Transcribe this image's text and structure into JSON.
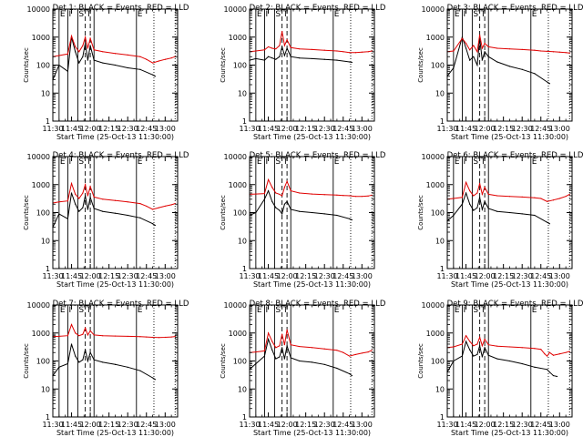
{
  "chart_data": {
    "type": "line",
    "xlabel": "Start Time (25-Oct-13 11:30:00)",
    "ylabel": "Counts/sec",
    "x_ticks": [
      "11:30",
      "11:45",
      "12:00",
      "12:15",
      "12:30",
      "12:45",
      "13:00"
    ],
    "x_tick_minutes": [
      0,
      15,
      30,
      45,
      60,
      75,
      90
    ],
    "xlim_minutes": [
      0,
      100
    ],
    "ylim": [
      1,
      10000
    ],
    "yscale": "log",
    "y_ticks": [
      "1",
      "10",
      "100",
      "1000",
      "10000"
    ],
    "y_tick_values": [
      1,
      10,
      100,
      1000,
      10000
    ],
    "series_colors": {
      "events": "#000000",
      "lld": "#e00000"
    },
    "interval_markers": [
      {
        "label": "E",
        "minutes": 5,
        "style": "solid"
      },
      {
        "label": "I",
        "minutes": 12,
        "style": "solid"
      },
      {
        "label": "S",
        "minutes": 20,
        "style": "solid"
      },
      {
        "label": "T",
        "minutes": 26,
        "style": "dashed"
      },
      {
        "label": "",
        "minutes": 30,
        "style": "dashed"
      },
      {
        "label": "",
        "minutes": 33,
        "style": "solid"
      },
      {
        "label": "E",
        "minutes": 67,
        "style": "solid"
      },
      {
        "label": "",
        "minutes": 81,
        "style": "dotted"
      },
      {
        "label": "",
        "minutes": 98,
        "style": "dotted"
      }
    ],
    "panels": [
      {
        "title": "Det 1: BLACK = Events, RED = LLD",
        "series": [
          {
            "name": "Events",
            "x": [
              0,
              5,
              12,
              15,
              18,
              21,
              24,
              26,
              28,
              30,
              33,
              40,
              50,
              60,
              70,
              80,
              82
            ],
            "y": [
              30,
              100,
              60,
              1000,
              300,
              120,
              200,
              600,
              150,
              500,
              150,
              120,
              100,
              80,
              70,
              45,
              40
            ]
          },
          {
            "name": "LLD",
            "x": [
              0,
              5,
              12,
              15,
              18,
              21,
              24,
              26,
              28,
              30,
              33,
              40,
              50,
              60,
              70,
              75,
              80,
              85,
              90,
              95,
              98
            ],
            "y": [
              200,
              220,
              250,
              1100,
              450,
              300,
              500,
              1000,
              400,
              900,
              350,
              300,
              260,
              230,
              200,
              160,
              120,
              140,
              160,
              180,
              200
            ]
          }
        ]
      },
      {
        "title": "Det 2: BLACK = Events, RED = LLD",
        "series": [
          {
            "name": "Events",
            "x": [
              0,
              5,
              12,
              15,
              18,
              21,
              24,
              26,
              28,
              30,
              33,
              40,
              50,
              60,
              70,
              80,
              82
            ],
            "y": [
              150,
              170,
              150,
              200,
              180,
              160,
              200,
              450,
              220,
              400,
              200,
              180,
              170,
              160,
              150,
              130,
              125
            ]
          },
          {
            "name": "LLD",
            "x": [
              0,
              5,
              12,
              15,
              18,
              21,
              24,
              26,
              28,
              30,
              33,
              40,
              50,
              60,
              70,
              75,
              80,
              85,
              90,
              95,
              98
            ],
            "y": [
              300,
              320,
              350,
              450,
              400,
              380,
              500,
              1600,
              500,
              800,
              420,
              380,
              360,
              340,
              320,
              300,
              280,
              280,
              290,
              300,
              320
            ]
          }
        ]
      },
      {
        "title": "Det 3: BLACK = Events, RED = LLD",
        "series": [
          {
            "name": "Events",
            "x": [
              0,
              5,
              12,
              15,
              18,
              21,
              24,
              26,
              28,
              30,
              33,
              40,
              50,
              60,
              70,
              80,
              82
            ],
            "y": [
              40,
              80,
              1000,
              400,
              150,
              200,
              100,
              900,
              150,
              300,
              200,
              130,
              90,
              70,
              50,
              25,
              22
            ]
          },
          {
            "name": "LLD",
            "x": [
              0,
              5,
              12,
              15,
              18,
              21,
              24,
              26,
              28,
              30,
              33,
              40,
              50,
              60,
              70,
              75,
              80,
              85,
              90,
              95,
              98
            ],
            "y": [
              300,
              320,
              900,
              600,
              350,
              500,
              300,
              1200,
              400,
              600,
              450,
              400,
              380,
              360,
              340,
              320,
              310,
              300,
              290,
              280,
              270
            ]
          }
        ]
      },
      {
        "title": "Det 4: BLACK = Events, RED = LLD",
        "series": [
          {
            "name": "Events",
            "x": [
              0,
              5,
              12,
              15,
              18,
              21,
              24,
              26,
              28,
              30,
              33,
              40,
              50,
              60,
              70,
              80,
              82
            ],
            "y": [
              30,
              90,
              60,
              500,
              200,
              110,
              150,
              400,
              130,
              350,
              140,
              110,
              95,
              80,
              65,
              40,
              35
            ]
          },
          {
            "name": "LLD",
            "x": [
              0,
              5,
              12,
              15,
              18,
              21,
              24,
              26,
              28,
              30,
              33,
              40,
              50,
              60,
              70,
              75,
              80,
              85,
              90,
              95,
              98
            ],
            "y": [
              220,
              240,
              260,
              1100,
              450,
              320,
              500,
              1000,
              400,
              850,
              360,
              300,
              270,
              240,
              210,
              170,
              130,
              150,
              170,
              190,
              210
            ]
          }
        ]
      },
      {
        "title": "Det 5: BLACK = Events, RED = LLD",
        "series": [
          {
            "name": "Events",
            "x": [
              0,
              5,
              12,
              15,
              18,
              21,
              24,
              26,
              28,
              30,
              33,
              40,
              50,
              60,
              70,
              80,
              82
            ],
            "y": [
              80,
              100,
              300,
              600,
              250,
              150,
              120,
              90,
              200,
              250,
              130,
              110,
              100,
              90,
              80,
              60,
              55
            ]
          },
          {
            "name": "LLD",
            "x": [
              0,
              5,
              12,
              15,
              18,
              21,
              24,
              26,
              28,
              30,
              33,
              40,
              50,
              60,
              70,
              75,
              80,
              85,
              90,
              95,
              98
            ],
            "y": [
              450,
              460,
              480,
              1500,
              800,
              500,
              450,
              400,
              800,
              1300,
              600,
              500,
              460,
              440,
              420,
              410,
              400,
              380,
              380,
              390,
              420
            ]
          }
        ]
      },
      {
        "title": "Det 6: BLACK = Events, RED = LLD",
        "series": [
          {
            "name": "Events",
            "x": [
              0,
              5,
              12,
              15,
              18,
              21,
              24,
              26,
              28,
              30,
              33,
              40,
              50,
              60,
              70,
              80,
              82
            ],
            "y": [
              50,
              80,
              200,
              500,
              200,
              120,
              150,
              350,
              130,
              250,
              140,
              110,
              100,
              90,
              80,
              45,
              40
            ]
          },
          {
            "name": "LLD",
            "x": [
              0,
              5,
              12,
              15,
              18,
              21,
              24,
              26,
              28,
              30,
              33,
              40,
              50,
              60,
              70,
              75,
              80,
              85,
              90,
              95,
              98
            ],
            "y": [
              300,
              320,
              350,
              1200,
              600,
              400,
              500,
              1100,
              450,
              800,
              450,
              400,
              380,
              360,
              340,
              320,
              250,
              280,
              320,
              380,
              450
            ]
          }
        ]
      },
      {
        "title": "Det 7: BLACK = Events, RED = LLD",
        "series": [
          {
            "name": "Events",
            "x": [
              0,
              5,
              12,
              15,
              18,
              21,
              24,
              26,
              28,
              30,
              33,
              40,
              50,
              60,
              70,
              80,
              82
            ],
            "y": [
              30,
              60,
              80,
              400,
              150,
              90,
              110,
              250,
              100,
              200,
              110,
              90,
              75,
              60,
              45,
              25,
              22
            ]
          },
          {
            "name": "LLD",
            "x": [
              0,
              5,
              12,
              15,
              18,
              21,
              24,
              26,
              28,
              30,
              33,
              40,
              50,
              60,
              70,
              75,
              80,
              85,
              90,
              95,
              98
            ],
            "y": [
              750,
              760,
              800,
              2000,
              1000,
              800,
              900,
              1500,
              850,
              1200,
              850,
              800,
              780,
              760,
              740,
              720,
              700,
              690,
              700,
              720,
              750
            ]
          }
        ]
      },
      {
        "title": "Det 8: BLACK = Events, RED = LLD",
        "series": [
          {
            "name": "Events",
            "x": [
              0,
              5,
              12,
              15,
              18,
              21,
              24,
              26,
              28,
              30,
              33,
              40,
              50,
              60,
              70,
              80,
              82
            ],
            "y": [
              50,
              80,
              150,
              600,
              250,
              120,
              140,
              300,
              120,
              350,
              130,
              100,
              90,
              75,
              55,
              35,
              30
            ]
          },
          {
            "name": "LLD",
            "x": [
              0,
              5,
              12,
              15,
              18,
              21,
              24,
              26,
              28,
              30,
              33,
              40,
              50,
              60,
              70,
              75,
              80,
              85,
              90,
              95,
              98
            ],
            "y": [
              200,
              210,
              230,
              1000,
              500,
              300,
              350,
              900,
              380,
              1300,
              380,
              330,
              300,
              270,
              240,
              200,
              150,
              170,
              190,
              210,
              240
            ]
          }
        ]
      },
      {
        "title": "Det 9: BLACK = Events, RED = LLD",
        "series": [
          {
            "name": "Events",
            "x": [
              0,
              5,
              12,
              15,
              18,
              21,
              24,
              26,
              28,
              30,
              33,
              40,
              50,
              60,
              70,
              80,
              82,
              85,
              88
            ],
            "y": [
              40,
              100,
              150,
              500,
              250,
              150,
              170,
              350,
              140,
              300,
              160,
              120,
              100,
              80,
              60,
              50,
              40,
              30,
              28
            ]
          },
          {
            "name": "LLD",
            "x": [
              0,
              5,
              12,
              15,
              18,
              21,
              24,
              26,
              28,
              30,
              33,
              40,
              50,
              60,
              70,
              75,
              78,
              80,
              82,
              85,
              90,
              95,
              98
            ],
            "y": [
              300,
              320,
              400,
              800,
              500,
              350,
              400,
              700,
              350,
              600,
              380,
              340,
              320,
              300,
              280,
              260,
              180,
              150,
              200,
              160,
              180,
              200,
              220
            ]
          }
        ]
      }
    ]
  }
}
